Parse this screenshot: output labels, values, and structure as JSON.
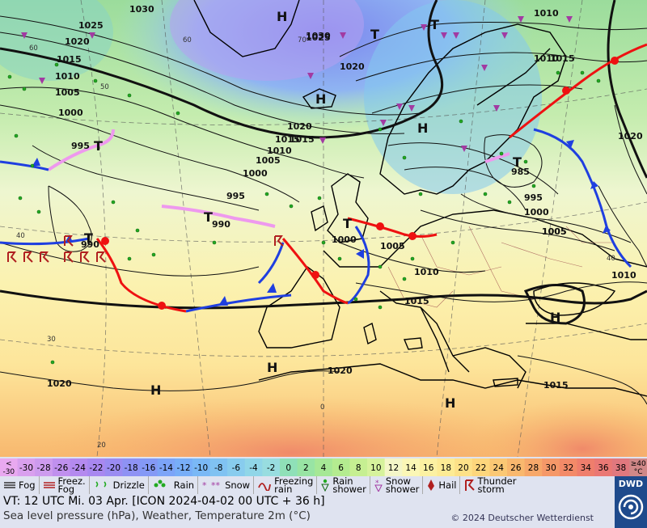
{
  "map": {
    "isobar_labels": [
      "1030",
      "1025",
      "1020",
      "1015",
      "1010",
      "1005",
      "1000",
      "995",
      "990",
      "985",
      "1030",
      "1025",
      "1020",
      "1015",
      "1010",
      "1005",
      "1000",
      "995",
      "990",
      "1020",
      "1015",
      "1010",
      "1005",
      "1000",
      "995",
      "1010",
      "1015",
      "1020",
      "1005",
      "1010",
      "1015",
      "1020",
      "1000",
      "1005",
      "1010",
      "1015",
      "1020"
    ],
    "pressure_centres": [
      "H",
      "T"
    ],
    "temperature_labels": [
      "60",
      "50",
      "40",
      "30",
      "20",
      "0",
      "60",
      "70",
      "40"
    ],
    "colors": {
      "cold_front": "#1f3fe0",
      "warm_front": "#ee1111",
      "occlusion": "#ee99ee",
      "isobar": "#111111",
      "coast": "#000000"
    }
  },
  "scale": {
    "values": [
      "<\n-30",
      "-30",
      "-28",
      "-26",
      "-24",
      "-22",
      "-20",
      "-18",
      "-16",
      "-14",
      "-12",
      "-10",
      "-8",
      "-6",
      "-4",
      "-2",
      "0",
      "2",
      "4",
      "6",
      "8",
      "10",
      "12",
      "14",
      "16",
      "18",
      "20",
      "22",
      "24",
      "26",
      "28",
      "30",
      "32",
      "34",
      "36",
      "38",
      "≥40\n°C"
    ],
    "colors": [
      "#e9a9f0",
      "#d9a0ee",
      "#cd9bee",
      "#c090ee",
      "#b48aef",
      "#a888f0",
      "#9a8cf2",
      "#8e92f4",
      "#8499f6",
      "#7ca4f8",
      "#78aef8",
      "#7ab8f6",
      "#80c2f2",
      "#88ccee",
      "#90d6e8",
      "#98dde0",
      "#8fe0b8",
      "#98e4a4",
      "#a6e896",
      "#b4ec90",
      "#c6ef92",
      "#d6f29c",
      "#f4f6c8",
      "#fbf7b6",
      "#fcf1a2",
      "#fdeb94",
      "#fde188",
      "#fdd67c",
      "#fbc874",
      "#f9b86e",
      "#f7a86a",
      "#f59868",
      "#f38a68",
      "#ef7e6c",
      "#ea7874",
      "#e0787e",
      "#d08888"
    ]
  },
  "legend": {
    "items": [
      {
        "label": "Fog"
      },
      {
        "label": "Freez.\nFog"
      },
      {
        "label": "Drizzle"
      },
      {
        "label": "Rain"
      },
      {
        "label": "Snow"
      },
      {
        "label": "Freezing\nrain"
      },
      {
        "label": "Rain\nshower"
      },
      {
        "label": "Snow\nshower"
      },
      {
        "label": "Hail"
      },
      {
        "label": "Thunder\nstorm"
      }
    ]
  },
  "footer": {
    "valid_time": "VT: 12 UTC Mi.  03 Apr. [ICON 2024-04-02  00 UTC + 36 h]",
    "description": "Sea level pressure (hPa), Weather, Temperature 2m (°C)",
    "copyright": "© 2024 Deutscher Wetterdienst"
  },
  "logo": {
    "text": "DWD"
  }
}
